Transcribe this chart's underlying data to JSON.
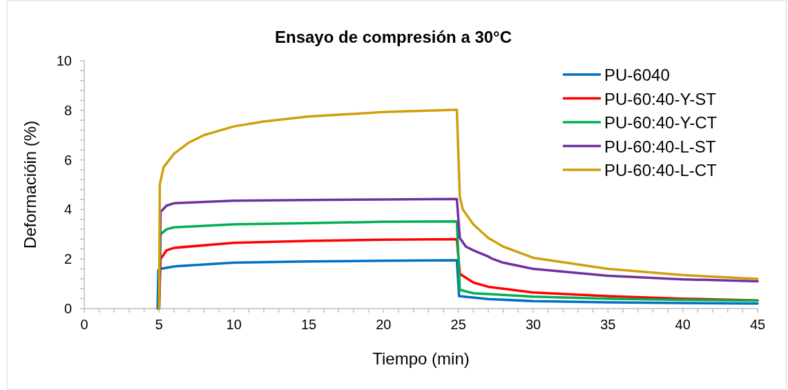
{
  "chart_data": {
    "type": "line",
    "title": "Ensayo de compresión a 30°C",
    "xlabel": "Tiempo (min)",
    "ylabel": "Deformacióin  (%)",
    "xlim": [
      0,
      45
    ],
    "ylim": [
      0,
      10
    ],
    "xticks": [
      0,
      {
        "value": 1,
        "label": null
      },
      {
        "value": 2,
        "label": null
      },
      {
        "value": 3,
        "label": null
      },
      {
        "value": 4,
        "label": null
      },
      5,
      {
        "value": 6,
        "label": null
      },
      {
        "value": 7,
        "label": null
      },
      {
        "value": 8,
        "label": null
      },
      {
        "value": 9,
        "label": null
      },
      10,
      {
        "value": 11,
        "label": null
      },
      {
        "value": 12,
        "label": null
      },
      {
        "value": 13,
        "label": null
      },
      {
        "value": 14,
        "label": null
      },
      15,
      {
        "value": 16,
        "label": null
      },
      {
        "value": 17,
        "label": null
      },
      {
        "value": 18,
        "label": null
      },
      {
        "value": 19,
        "label": null
      },
      20,
      {
        "value": 21,
        "label": null
      },
      {
        "value": 22,
        "label": null
      },
      {
        "value": 23,
        "label": null
      },
      {
        "value": 24,
        "label": null
      },
      25,
      {
        "value": 26,
        "label": null
      },
      {
        "value": 27,
        "label": null
      },
      {
        "value": 28,
        "label": null
      },
      {
        "value": 29,
        "label": null
      },
      30,
      {
        "value": 31,
        "label": null
      },
      {
        "value": 32,
        "label": null
      },
      {
        "value": 33,
        "label": null
      },
      {
        "value": 34,
        "label": null
      },
      35,
      {
        "value": 36,
        "label": null
      },
      {
        "value": 37,
        "label": null
      },
      {
        "value": 38,
        "label": null
      },
      {
        "value": 39,
        "label": null
      },
      40,
      {
        "value": 41,
        "label": null
      },
      {
        "value": 42,
        "label": null
      },
      {
        "value": 43,
        "label": null
      },
      {
        "value": 44,
        "label": null
      },
      45
    ],
    "yticks": [
      0,
      {
        "value": 0.4,
        "label": null
      },
      {
        "value": 0.8,
        "label": null
      },
      {
        "value": 1.2,
        "label": null
      },
      {
        "value": 1.6,
        "label": null
      },
      2,
      {
        "value": 2.4,
        "label": null
      },
      {
        "value": 2.8,
        "label": null
      },
      {
        "value": 3.2,
        "label": null
      },
      {
        "value": 3.6,
        "label": null
      },
      4,
      {
        "value": 4.4,
        "label": null
      },
      {
        "value": 4.8,
        "label": null
      },
      {
        "value": 5.2,
        "label": null
      },
      {
        "value": 5.6,
        "label": null
      },
      6,
      {
        "value": 6.4,
        "label": null
      },
      {
        "value": 6.8,
        "label": null
      },
      {
        "value": 7.2,
        "label": null
      },
      {
        "value": 7.6,
        "label": null
      },
      8,
      {
        "value": 8.4,
        "label": null
      },
      {
        "value": 8.8,
        "label": null
      },
      {
        "value": 9.2,
        "label": null
      },
      {
        "value": 9.6,
        "label": null
      },
      10
    ],
    "grid": false,
    "legend": "top right",
    "marker": "none",
    "line_style": "solid",
    "series": [
      {
        "name": "PU-6040",
        "color": "#0070c0",
        "x": [
          4.9,
          4.95,
          5.1,
          6,
          10,
          15,
          20,
          24.9,
          25.05,
          27,
          30,
          35,
          40,
          45
        ],
        "values": [
          0,
          1.55,
          1.6,
          1.7,
          1.85,
          1.9,
          1.93,
          1.95,
          0.5,
          0.38,
          0.3,
          0.25,
          0.22,
          0.2
        ]
      },
      {
        "name": "PU-60:40-Y-ST",
        "color": "#ff0000",
        "x": [
          5,
          5.1,
          5.5,
          6,
          10,
          15,
          20,
          24.9,
          25.1,
          26,
          27,
          30,
          35,
          40,
          45
        ],
        "values": [
          0,
          2.0,
          2.35,
          2.45,
          2.65,
          2.73,
          2.78,
          2.8,
          1.4,
          1.05,
          0.88,
          0.65,
          0.5,
          0.4,
          0.33
        ]
      },
      {
        "name": "PU-60:40-Y-CT",
        "color": "#00b050",
        "x": [
          5,
          5.1,
          5.5,
          6,
          10,
          15,
          20,
          24.9,
          25.1,
          26,
          30,
          35,
          40,
          45
        ],
        "values": [
          0,
          3.0,
          3.2,
          3.28,
          3.4,
          3.45,
          3.5,
          3.52,
          0.75,
          0.62,
          0.48,
          0.4,
          0.35,
          0.32
        ]
      },
      {
        "name": "PU-60:40-L-ST",
        "color": "#7030a0",
        "x": [
          5,
          5.1,
          5.5,
          6,
          10,
          15,
          20,
          24.9,
          25.1,
          25.5,
          26,
          27,
          27.3,
          28,
          30,
          35,
          40,
          45
        ],
        "values": [
          0,
          3.9,
          4.15,
          4.25,
          4.35,
          4.38,
          4.4,
          4.42,
          2.85,
          2.5,
          2.35,
          2.1,
          2.0,
          1.85,
          1.6,
          1.32,
          1.18,
          1.1
        ]
      },
      {
        "name": "PU-60:40-L-CT",
        "color": "#d09f0a",
        "x": [
          5,
          5.05,
          5.3,
          6,
          7,
          8,
          10,
          12,
          15,
          20,
          24.9,
          25.1,
          25.3,
          26,
          27,
          28,
          30,
          35,
          40,
          45
        ],
        "values": [
          0,
          5.0,
          5.7,
          6.25,
          6.7,
          7.0,
          7.35,
          7.55,
          7.75,
          7.93,
          8.02,
          4.5,
          4.0,
          3.4,
          2.85,
          2.5,
          2.05,
          1.6,
          1.35,
          1.2
        ]
      }
    ]
  }
}
